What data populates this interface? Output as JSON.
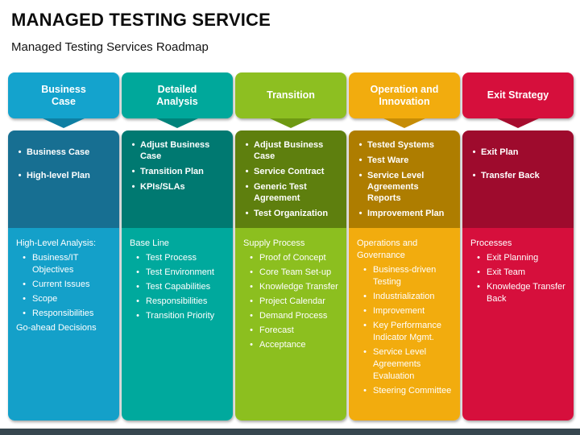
{
  "page": {
    "title": "MANAGED TESTING SERVICE",
    "subtitle": "Managed Testing Services Roadmap"
  },
  "bullet_glyph": "•",
  "footer_bar_color": "#37474F",
  "columns": [
    {
      "header": "Business Case",
      "colors": {
        "header": "#14A3CD",
        "chevron": "#0E7FA3",
        "top": "#176F92",
        "bottom": "#14A0C9"
      },
      "top": [
        "Business Case",
        "High-level Plan"
      ],
      "bottom": [
        {
          "bullet": false,
          "text": "High-Level Analysis:"
        },
        {
          "bullet": true,
          "text": "Business/IT Objectives"
        },
        {
          "bullet": true,
          "text": "Current Issues"
        },
        {
          "bullet": true,
          "text": "Scope"
        },
        {
          "bullet": true,
          "text": "Responsibilities"
        },
        {
          "bullet": false,
          "text": "Go-ahead Decisions"
        }
      ]
    },
    {
      "header": "Detailed Analysis",
      "colors": {
        "header": "#00A89B",
        "chevron": "#00837B",
        "top": "#007971",
        "bottom": "#00A99D"
      },
      "top": [
        "Adjust Business Case",
        "Transition Plan",
        "KPIs/SLAs"
      ],
      "bottom": [
        {
          "bullet": false,
          "text": "Base Line"
        },
        {
          "bullet": true,
          "text": "Test Process"
        },
        {
          "bullet": true,
          "text": "Test Environment"
        },
        {
          "bullet": true,
          "text": "Test Capabilities"
        },
        {
          "bullet": true,
          "text": "Responsibilities"
        },
        {
          "bullet": true,
          "text": "Transition Priority"
        }
      ]
    },
    {
      "header": "Transition",
      "colors": {
        "header": "#8DBF21",
        "chevron": "#6E9913",
        "top": "#5E7F0E",
        "bottom": "#8CBF1F"
      },
      "top": [
        "Adjust Business Case",
        "Service Contract",
        "Generic Test Agreement",
        "Test Organization"
      ],
      "bottom": [
        {
          "bullet": false,
          "text": "Supply Process"
        },
        {
          "bullet": true,
          "text": "Proof of Concept"
        },
        {
          "bullet": true,
          "text": "Core Team Set-up"
        },
        {
          "bullet": true,
          "text": "Knowledge Transfer"
        },
        {
          "bullet": true,
          "text": "Project Calendar"
        },
        {
          "bullet": true,
          "text": "Demand Process"
        },
        {
          "bullet": true,
          "text": "Forecast"
        },
        {
          "bullet": true,
          "text": "Acceptance"
        }
      ]
    },
    {
      "header": "Operation and Innovation",
      "colors": {
        "header": "#F2AC0E",
        "chevron": "#C68C06",
        "top": "#AE7D00",
        "bottom": "#F2AC0E"
      },
      "top": [
        "Tested Systems",
        "Test Ware",
        "Service Level Agreements Reports",
        "Improvement Plan"
      ],
      "bottom": [
        {
          "bullet": false,
          "text": "Operations and Governance"
        },
        {
          "bullet": true,
          "text": "Business-driven Testing"
        },
        {
          "bullet": true,
          "text": "Industrialization"
        },
        {
          "bullet": true,
          "text": "Improvement"
        },
        {
          "bullet": true,
          "text": "Key Performance Indicator Mgmt."
        },
        {
          "bullet": true,
          "text": "Service Level Agreements Evaluation"
        },
        {
          "bullet": true,
          "text": "Steering Committee"
        }
      ]
    },
    {
      "header": "Exit Strategy",
      "colors": {
        "header": "#D60F3C",
        "chevron": "#A60C2E",
        "top": "#9E0B2D",
        "bottom": "#D60F3C"
      },
      "top": [
        "Exit Plan",
        "Transfer Back"
      ],
      "bottom": [
        {
          "bullet": false,
          "text": "Processes"
        },
        {
          "bullet": true,
          "text": "Exit Planning"
        },
        {
          "bullet": true,
          "text": "Exit Team"
        },
        {
          "bullet": true,
          "text": "Knowledge Transfer Back"
        }
      ]
    }
  ]
}
